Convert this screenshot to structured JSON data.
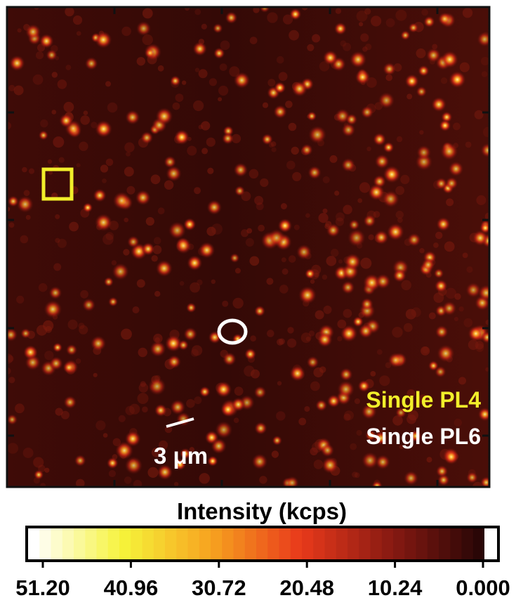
{
  "figure": {
    "legend": {
      "pl4": "Single PL4",
      "pl6": "Single PL6",
      "pl4_color": "#f2ef2a",
      "pl6_color": "#ffffff"
    },
    "scale_bar": {
      "label": "3 μm",
      "length_um": 3
    },
    "colorbar": {
      "title": "Intensity (kcps)",
      "ticks": [
        "51.20",
        "40.96",
        "30.72",
        "20.48",
        "10.24",
        "0.000"
      ],
      "range_kcps": [
        0,
        51.2
      ],
      "colormap": [
        "#ffffff",
        "#f6f33a",
        "#f7a21f",
        "#e8391b",
        "#8a1a12",
        "#2a0606"
      ]
    },
    "background_color": "#3a0a07"
  }
}
